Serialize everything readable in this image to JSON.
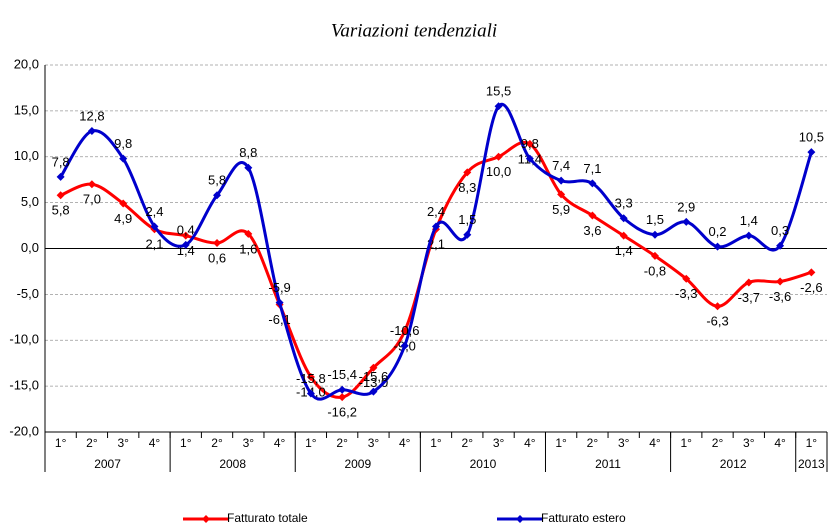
{
  "chart_data": {
    "type": "line",
    "title": "Variazioni tendenziali",
    "categories": [
      "1°",
      "2°",
      "3°",
      "4°",
      "1°",
      "2°",
      "3°",
      "4°",
      "1°",
      "2°",
      "3°",
      "4°",
      "1°",
      "2°",
      "3°",
      "4°",
      "1°",
      "2°",
      "3°",
      "4°",
      "1°",
      "2°",
      "3°",
      "4°",
      "1°"
    ],
    "years": [
      "2007",
      "2008",
      "2009",
      "2010",
      "2011",
      "2012",
      "2013"
    ],
    "ylim": [
      -20,
      20
    ],
    "yticks": [
      {
        "value": -20,
        "label": "-20,0"
      },
      {
        "value": -15,
        "label": "-15,0"
      },
      {
        "value": -10,
        "label": "-10,0"
      },
      {
        "value": -5,
        "label": "-5,0"
      },
      {
        "value": 0,
        "label": "0,0"
      },
      {
        "value": 5,
        "label": "5,0"
      },
      {
        "value": 10,
        "label": "10,0"
      },
      {
        "value": 15,
        "label": "15,0"
      },
      {
        "value": 20,
        "label": "20,0"
      }
    ],
    "grid": true,
    "series": [
      {
        "name": "Fatturato totale",
        "color": "#ff0000",
        "values": [
          5.8,
          7.0,
          4.9,
          2.1,
          1.4,
          0.6,
          1.6,
          -6.1,
          -14.0,
          -16.2,
          -13.0,
          -9.0,
          2.1,
          8.3,
          10.0,
          11.4,
          5.9,
          3.6,
          1.4,
          -0.8,
          -3.3,
          -6.3,
          -3.7,
          -3.6,
          -2.6
        ],
        "value_labels": [
          "5,8",
          "7,0",
          "4,9",
          "2,1",
          "1,4",
          "0,6",
          "1,6",
          "-6,1",
          "-14,0",
          "-16,2",
          "-13,0",
          "-9,0",
          "2,1",
          "8,3",
          "10,0",
          "11,4",
          "5,9",
          "3,6",
          "1,4",
          "-0,8",
          "-3,3",
          "-6,3",
          "-3,7",
          "-3,6",
          "-2,6"
        ]
      },
      {
        "name": "Fatturato estero",
        "color": "#0000cc",
        "values": [
          7.8,
          12.8,
          9.8,
          2.4,
          0.4,
          5.8,
          8.8,
          -5.9,
          -15.8,
          -15.4,
          -15.6,
          -10.6,
          2.4,
          1.5,
          15.5,
          9.8,
          7.4,
          7.1,
          3.3,
          1.5,
          2.9,
          0.2,
          1.4,
          0.3,
          10.5
        ],
        "value_labels": [
          "7,8",
          "12,8",
          "9,8",
          "2,4",
          "0,4",
          "5,8",
          "8,8",
          "-5,9",
          "-15,8",
          "-15,4",
          "-15,6",
          "-10,6",
          "2,4",
          "1,5",
          "15,5",
          "9,8",
          "7,4",
          "7,1",
          "3,3",
          "1,5",
          "2,9",
          "0,2",
          "1,4",
          "0,3",
          "10,5"
        ]
      }
    ]
  }
}
